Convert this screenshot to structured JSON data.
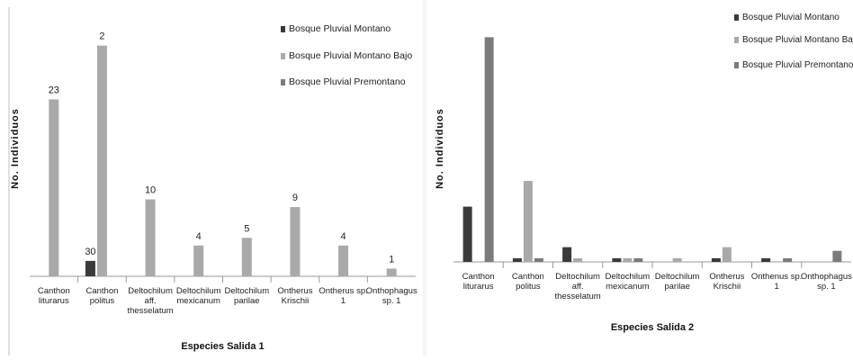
{
  "chart_data": [
    {
      "type": "bar",
      "xlabel": "Especies Salida 1",
      "ylabel": "No. Individuos",
      "categories": [
        "Canthon\nliturarus",
        "Canthon\npolitus",
        "Deltochilum\naff.\nthesselatum",
        "Deltochilum\nmexicanum",
        "Deltochilum\nparilae",
        "Ontherus\nKrischii",
        "Ontherus sp.\n1",
        "Onthophagus\nsp. 1"
      ],
      "series": [
        {
          "name": "Bosque Pluvial Montano",
          "values": [
            0,
            2,
            0,
            0,
            0,
            0,
            0,
            0
          ]
        },
        {
          "name": "Bosque Pluvial Montano Bajo",
          "values": [
            23,
            30,
            10,
            4,
            5,
            9,
            4,
            1
          ]
        },
        {
          "name": "Bosque Pluvial Premontano",
          "values": [
            0,
            0,
            0,
            0,
            0,
            0,
            0,
            0
          ]
        }
      ],
      "data_labels": [
        "23",
        "30",
        "2",
        "10",
        "4",
        "5",
        "9",
        "4",
        "1"
      ],
      "ylim": [
        0,
        33
      ],
      "grid": false,
      "legend": "top-right",
      "colors": [
        "#3a3a3a",
        "#a9a9a9",
        "#7b7b7b"
      ]
    },
    {
      "type": "bar",
      "xlabel": "Especies Salida 2",
      "ylabel": "No. Individuos",
      "categories": [
        "Canthon\nliturarus",
        "Canthon\npolitus",
        "Deltochilum\naff.\nthesselatum",
        "Deltochilum\nmexicanum",
        "Deltochilum\nparilae",
        "Ontherus\nKrischii",
        "Onthenus sp.\n1",
        "Onthophagus\nsp. 1"
      ],
      "series": [
        {
          "name": "Bosque Pluvial Montano",
          "values": [
            15,
            1,
            4,
            1,
            0,
            1,
            1,
            0
          ]
        },
        {
          "name": "Bosque Pluvial Montano Bajo",
          "values": [
            0,
            22,
            1,
            1,
            1,
            4,
            0,
            0
          ]
        },
        {
          "name": "Bosque Pluvial Premontano",
          "values": [
            61,
            1,
            0,
            1,
            0,
            0,
            1,
            3
          ]
        }
      ],
      "ylim": [
        0,
        65
      ],
      "grid": false,
      "legend": "top-right",
      "colors": [
        "#3a3a3a",
        "#a9a9a9",
        "#7b7b7b"
      ]
    }
  ]
}
